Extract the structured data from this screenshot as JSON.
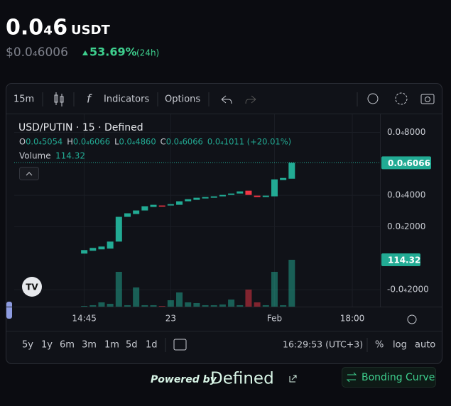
{
  "header": {
    "price": "0.0₄6",
    "unit": "USDT",
    "price_usd": "$0.0₄6006",
    "change": "53.69%",
    "period": "(24h)"
  },
  "toolbar": {
    "interval": "15m",
    "indicators": "Indicators",
    "options": "Options"
  },
  "chart_data": {
    "type": "candlestick",
    "title": "USD/PUTIN · 15 · Defined",
    "ohlc_legend": [
      {
        "key": "O",
        "value": "0.0₄5054"
      },
      {
        "key": "H",
        "value": "0.0₄6066"
      },
      {
        "key": "L",
        "value": "0.0₄4860"
      },
      {
        "key": "C",
        "value": "0.0₄6066"
      }
    ],
    "change_label": "0.0₄1011 (+20.01%)",
    "volume_label": "Volume",
    "volume_value": "114.32",
    "open": [
      2.92e-06,
      4.72e-06,
      5.62e-06,
      6.07e-06,
      1.056e-05,
      2.629e-05,
      2.809e-05,
      3.033e-05,
      3.258e-05,
      3.348e-05,
      3.348e-05,
      3.393e-05,
      3.618e-05,
      3.708e-05,
      3.797e-05,
      3.842e-05,
      3.932e-05,
      4.022e-05,
      4.112e-05,
      4.292e-05,
      3.977e-05,
      3.887e-05,
      3.932e-05,
      4.966e-05,
      5.054e-05
    ],
    "close": [
      5.17e-06,
      6.52e-06,
      7.41e-06,
      1.056e-05,
      2.629e-05,
      2.854e-05,
      3.033e-05,
      3.303e-05,
      3.393e-05,
      3.303e-05,
      3.438e-05,
      3.618e-05,
      3.753e-05,
      3.842e-05,
      3.887e-05,
      3.932e-05,
      4.022e-05,
      4.112e-05,
      4.247e-05,
      4.022e-05,
      3.887e-05,
      3.977e-05,
      5.011e-05,
      5.101e-05,
      6.066e-05
    ],
    "volume": [
      1.7,
      3.5,
      10.4,
      6.9,
      84.9,
      3.5,
      46.8,
      3.5,
      3.5,
      1.7,
      15.6,
      34.6,
      10.4,
      8.7,
      3.5,
      3.5,
      5.2,
      17.3,
      3.5,
      41.6,
      10.4,
      3.5,
      84.9,
      3.5,
      114.32
    ],
    "up_color": "#22ab94",
    "down_color": "#f23645",
    "ylim": [
      -3.08e-05,
      9.15e-05
    ],
    "yticks": [
      {
        "value": 8e-05,
        "label": "0.0₄8000"
      },
      {
        "value": 4e-05,
        "label": "0.0₄4000"
      },
      {
        "value": 2e-05,
        "label": "0.0₄2000"
      },
      {
        "value": -2e-05,
        "label": "-0.0₄2000"
      }
    ],
    "volume_lim": [
      0,
      160
    ],
    "xlim": [
      -8.1,
      34.2
    ],
    "xticks": [
      {
        "value": 0,
        "label": "14:45"
      },
      {
        "value": 10,
        "label": "23"
      },
      {
        "value": 22,
        "label": "Feb"
      },
      {
        "value": 31,
        "label": "18:00"
      }
    ],
    "grid": true
  },
  "bottom_bar": {
    "ranges": [
      "5y",
      "1y",
      "6m",
      "3m",
      "1m",
      "5d",
      "1d"
    ],
    "time": "16:29:53 (UTC+3)",
    "percent": "%",
    "log": "log",
    "auto": "auto"
  },
  "footer": {
    "powered": "Powered by",
    "brand": "Defined",
    "button": "Bonding Curve"
  }
}
